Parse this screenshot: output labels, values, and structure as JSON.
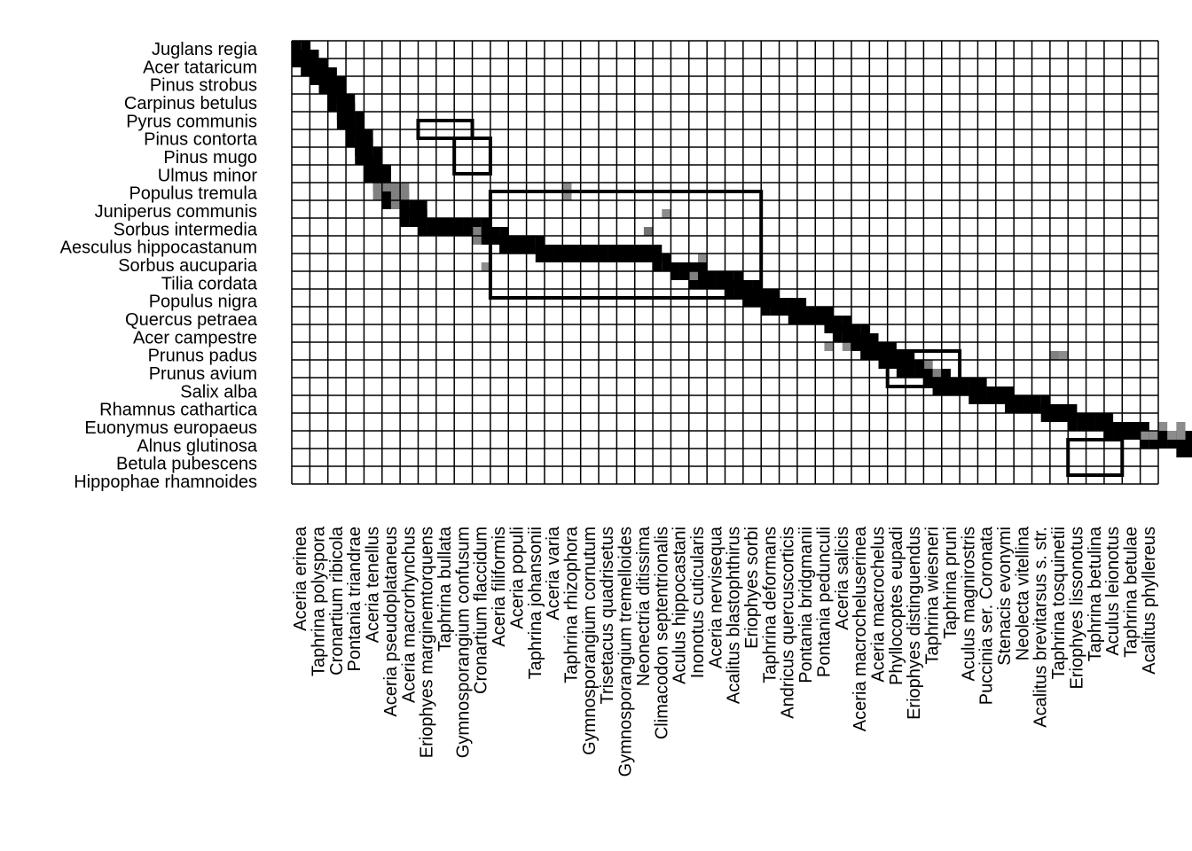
{
  "chart_data": {
    "type": "heatmap",
    "title": "",
    "xlabel": "",
    "ylabel": "",
    "rows": [
      "Juglans regia",
      "Acer tataricum",
      "Pinus strobus",
      "Carpinus betulus",
      "Pyrus communis",
      "Pinus contorta",
      "Pinus mugo",
      "Ulmus minor",
      "Populus tremula",
      "Juniperus communis",
      "Sorbus intermedia",
      "Aesculus hippocastanum",
      "Sorbus aucuparia",
      "Tilia cordata",
      "Populus nigra",
      "Quercus petraea",
      "Acer campestre",
      "Prunus padus",
      "Prunus avium",
      "Salix alba",
      "Rhamnus cathartica",
      "Euonymus europaeus",
      "Alnus glutinosa",
      "Betula pubescens",
      "Hippophae rhamnoides"
    ],
    "columns": [
      "Aceria erinea",
      "Taphrina polyspora",
      "Cronartium ribicola",
      "Pontania triandrae",
      "Aceria tenellus",
      "Aceria pseudoplataneus",
      "Aceria macrorhynchus",
      "Eriophyes marginemtorquens",
      "Taphrina bullata",
      "Gymnosporangium confusum",
      "Cronartium flaccidum",
      "Aceria filiformis",
      "Aceria populi",
      "Taphrina johansonii",
      "Aceria varia",
      "Taphrina rhizophora",
      "Gymnosporangium cornutum",
      "Trisetacus quadrisetus",
      "Gymnosporangium tremelloides",
      "Neonectria ditissima",
      "Climacodon septentrionalis",
      "Aculus hippocastani",
      "Inonotus cuticularis",
      "Aceria nervisequa",
      "Acalitus blastophthirus",
      "Eriophyes sorbi",
      "Taphrina deformans",
      "Andricus quercuscorticis",
      "Pontania bridgmanii",
      "Pontania pedunculi",
      "Aceria salicis",
      "Aceria macrocheluserinea",
      "Aceria macrochelus",
      "Phyllocoptes eupadi",
      "Eriophyes distinguendus",
      "Taphrina wiesneri",
      "Taphrina pruni",
      "Aculus magnirostris",
      "Puccinia ser. Coronata",
      "Stenacis evonymi",
      "Neolecta vitellina",
      "Acalitus brevitarsus s. str.",
      "Taphrina tosquinetii",
      "Eriophyes lissonotus",
      "Taphrina betulina",
      "Aculus leionotus",
      "Taphrina betulae",
      "Acalitus phyllereus"
    ],
    "grid_columns": 48,
    "grid_rows": 25,
    "cell_subdivisions": 2,
    "value_scale": "0 = white, 1 = black",
    "cells": [
      [
        0,
        0,
        1,
        0
      ],
      [
        0,
        1,
        1,
        0
      ],
      [
        1,
        1,
        1,
        0
      ],
      [
        1,
        2,
        1,
        0
      ],
      [
        2,
        2,
        1,
        0
      ],
      [
        2,
        3,
        1,
        0
      ],
      [
        3,
        3,
        1,
        0
      ],
      [
        3,
        4,
        1,
        0
      ],
      [
        4,
        4,
        1,
        0
      ],
      [
        4,
        5,
        1,
        0
      ],
      [
        4,
        6,
        1,
        0
      ],
      [
        5,
        6,
        1,
        0
      ],
      [
        5,
        7,
        1,
        0
      ],
      [
        5,
        8,
        1,
        0
      ],
      [
        6,
        8,
        1,
        0
      ],
      [
        6,
        9,
        1,
        0
      ],
      [
        6,
        10,
        1,
        0
      ],
      [
        7,
        10,
        1,
        0
      ],
      [
        7,
        11,
        1,
        0
      ],
      [
        7,
        12,
        1,
        0
      ],
      [
        8,
        12,
        1,
        0
      ],
      [
        8,
        13,
        1,
        0
      ],
      [
        8,
        14,
        1,
        0
      ],
      [
        9,
        14,
        1,
        0
      ],
      [
        9,
        15,
        1,
        0
      ],
      [
        9,
        16,
        0.5,
        0
      ],
      [
        10,
        17,
        1,
        0
      ],
      [
        11,
        16,
        0.5,
        0
      ],
      [
        11,
        17,
        0.5,
        0
      ],
      [
        12,
        18,
        1,
        0
      ],
      [
        12,
        19,
        1,
        0
      ],
      [
        13,
        18,
        1,
        0
      ],
      [
        13,
        19,
        1,
        0
      ],
      [
        14,
        20,
        1,
        0
      ],
      [
        15,
        20,
        1,
        0
      ],
      [
        16,
        20,
        1,
        0
      ],
      [
        17,
        20,
        1,
        0
      ],
      [
        18,
        20,
        1,
        0
      ],
      [
        19,
        20,
        1,
        0
      ],
      [
        20,
        20,
        1,
        0
      ],
      [
        20,
        21,
        0.5,
        0
      ],
      [
        21,
        21,
        1,
        0
      ],
      [
        22,
        21,
        1,
        0
      ],
      [
        23,
        22,
        1,
        0
      ],
      [
        24,
        22,
        1,
        0
      ],
      [
        25,
        22,
        1,
        0
      ],
      [
        26,
        22,
        1,
        0
      ],
      [
        27,
        23,
        1,
        0
      ],
      [
        28,
        23,
        1,
        0
      ],
      [
        29,
        23,
        1,
        0
      ],
      [
        30,
        23,
        1,
        0
      ],
      [
        31,
        23,
        1,
        0
      ],
      [
        32,
        23,
        1,
        0
      ],
      [
        33,
        23,
        1,
        0
      ],
      [
        34,
        23,
        1,
        0
      ],
      [
        35,
        23,
        1,
        0
      ],
      [
        36,
        23,
        1,
        0
      ],
      [
        37,
        23,
        1,
        0
      ],
      [
        38,
        23,
        1,
        0
      ],
      [
        39,
        23,
        1,
        0
      ],
      [
        40,
        24,
        1,
        0
      ],
      [
        42,
        25,
        1,
        0
      ],
      [
        43,
        25,
        1,
        0
      ],
      [
        44,
        25,
        1,
        0
      ],
      [
        44,
        26,
        1,
        0
      ],
      [
        45,
        26,
        1,
        0
      ],
      [
        46,
        26,
        1,
        0
      ],
      [
        47,
        26,
        1,
        0
      ],
      [
        48,
        26,
        1,
        0
      ],
      [
        48,
        27,
        1,
        0
      ],
      [
        49,
        27,
        1,
        0
      ],
      [
        50,
        27,
        1,
        0
      ],
      [
        50,
        28,
        1,
        0
      ],
      [
        51,
        28,
        1,
        0
      ],
      [
        52,
        28,
        1,
        0
      ],
      [
        52,
        29,
        1,
        0
      ],
      [
        53,
        29,
        1,
        0
      ],
      [
        54,
        29,
        1,
        0
      ],
      [
        55,
        29,
        1,
        0
      ],
      [
        55,
        30,
        1,
        0
      ],
      [
        56,
        30,
        1,
        0
      ],
      [
        57,
        30,
        1,
        0
      ],
      [
        58,
        30,
        1,
        0
      ],
      [
        59,
        31,
        1,
        0
      ],
      [
        60,
        31,
        1,
        0
      ],
      [
        60,
        32,
        1,
        0
      ],
      [
        61,
        32,
        1,
        0
      ],
      [
        62,
        32,
        1,
        0
      ],
      [
        62,
        33,
        1,
        0
      ],
      [
        63,
        33,
        1,
        0
      ],
      [
        63,
        34,
        1,
        0
      ],
      [
        64,
        34,
        1,
        0
      ],
      [
        65,
        34,
        1,
        0
      ],
      [
        65,
        35,
        1,
        0
      ],
      [
        66,
        35,
        1,
        0
      ],
      [
        67,
        35,
        1,
        0
      ],
      [
        67,
        36,
        1,
        0
      ],
      [
        68,
        36,
        1,
        0
      ],
      [
        69,
        36,
        1,
        0
      ],
      [
        70,
        37,
        1,
        0
      ],
      [
        71,
        37,
        1,
        0
      ],
      [
        71,
        38,
        1,
        0
      ],
      [
        72,
        38,
        1,
        0
      ],
      [
        73,
        38,
        1,
        0
      ],
      [
        74,
        38,
        1,
        0
      ],
      [
        75,
        38,
        1,
        0
      ],
      [
        75,
        39,
        1,
        0
      ],
      [
        76,
        39,
        1,
        0
      ],
      [
        77,
        39,
        1,
        0
      ],
      [
        78,
        39,
        1,
        0
      ],
      [
        79,
        40,
        1,
        0
      ],
      [
        80,
        40,
        1,
        0
      ],
      [
        81,
        40,
        1,
        0
      ],
      [
        82,
        40,
        1,
        0
      ],
      [
        83,
        41,
        1,
        0
      ],
      [
        84,
        41,
        1,
        0
      ],
      [
        85,
        41,
        1,
        0
      ],
      [
        86,
        42,
        1,
        0
      ],
      [
        87,
        42,
        1,
        0
      ],
      [
        88,
        42,
        1,
        0
      ],
      [
        89,
        42,
        1,
        0
      ],
      [
        90,
        43,
        1,
        0
      ],
      [
        91,
        43,
        1,
        0
      ],
      [
        92,
        43,
        1,
        0
      ],
      [
        93,
        43,
        1,
        0
      ],
      [
        94,
        44,
        1,
        0
      ],
      [
        95,
        44,
        1,
        0
      ],
      [
        96,
        44,
        1,
        0
      ],
      [
        97,
        44,
        1,
        0
      ],
      [
        98,
        44,
        1,
        0
      ],
      [
        98,
        45,
        1,
        0
      ],
      [
        99,
        45,
        1,
        0
      ],
      [
        100,
        45,
        1,
        0
      ],
      [
        101,
        45,
        1,
        0
      ],
      [
        102,
        45,
        1,
        0
      ],
      [
        103,
        45,
        1,
        0
      ],
      [
        104,
        45,
        1,
        0
      ],
      [
        105,
        45,
        1,
        0
      ],
      [
        106,
        45,
        1,
        0
      ],
      [
        107,
        46,
        1,
        0
      ],
      [
        108,
        46,
        1,
        0
      ],
      [
        109,
        46,
        1,
        0
      ],
      [
        110,
        46,
        1,
        0
      ],
      [
        111,
        46,
        1,
        0
      ]
    ],
    "grey_cells": [
      [
        30,
        16,
        0.45
      ],
      [
        30,
        17,
        0.45
      ],
      [
        41,
        19,
        0.45
      ],
      [
        39,
        21,
        0.55
      ],
      [
        21,
        25,
        0.45
      ],
      [
        44,
        26,
        0.5
      ],
      [
        45,
        24,
        0.45
      ],
      [
        59,
        34,
        0.45
      ],
      [
        61,
        34,
        0.45
      ],
      [
        70,
        36,
        0.5
      ],
      [
        71,
        37,
        0.5
      ],
      [
        84,
        35,
        0.5
      ],
      [
        85,
        35,
        0.45
      ],
      [
        94,
        44,
        0.45
      ],
      [
        95,
        44,
        0.45
      ],
      [
        96,
        43,
        0.45
      ],
      [
        97,
        44,
        0.45
      ],
      [
        98,
        43,
        0.45
      ],
      [
        98,
        44,
        0.45
      ],
      [
        105,
        45,
        0.45
      ],
      [
        106,
        44,
        0.45
      ],
      [
        107,
        45,
        0.45
      ],
      [
        108,
        46,
        0.45
      ]
    ],
    "modules": [
      {
        "col_start": 7,
        "col_end": 9,
        "row_start": 4,
        "row_end": 4
      },
      {
        "col_start": 9,
        "col_end": 10,
        "row_start": 5,
        "row_end": 6
      },
      {
        "col_start": 11,
        "col_end": 25,
        "row_start": 8,
        "row_end": 13
      },
      {
        "col_start": 33,
        "col_end": 36,
        "row_start": 17,
        "row_end": 18
      },
      {
        "col_start": 43,
        "col_end": 45,
        "row_start": 22,
        "row_end": 23
      }
    ]
  }
}
